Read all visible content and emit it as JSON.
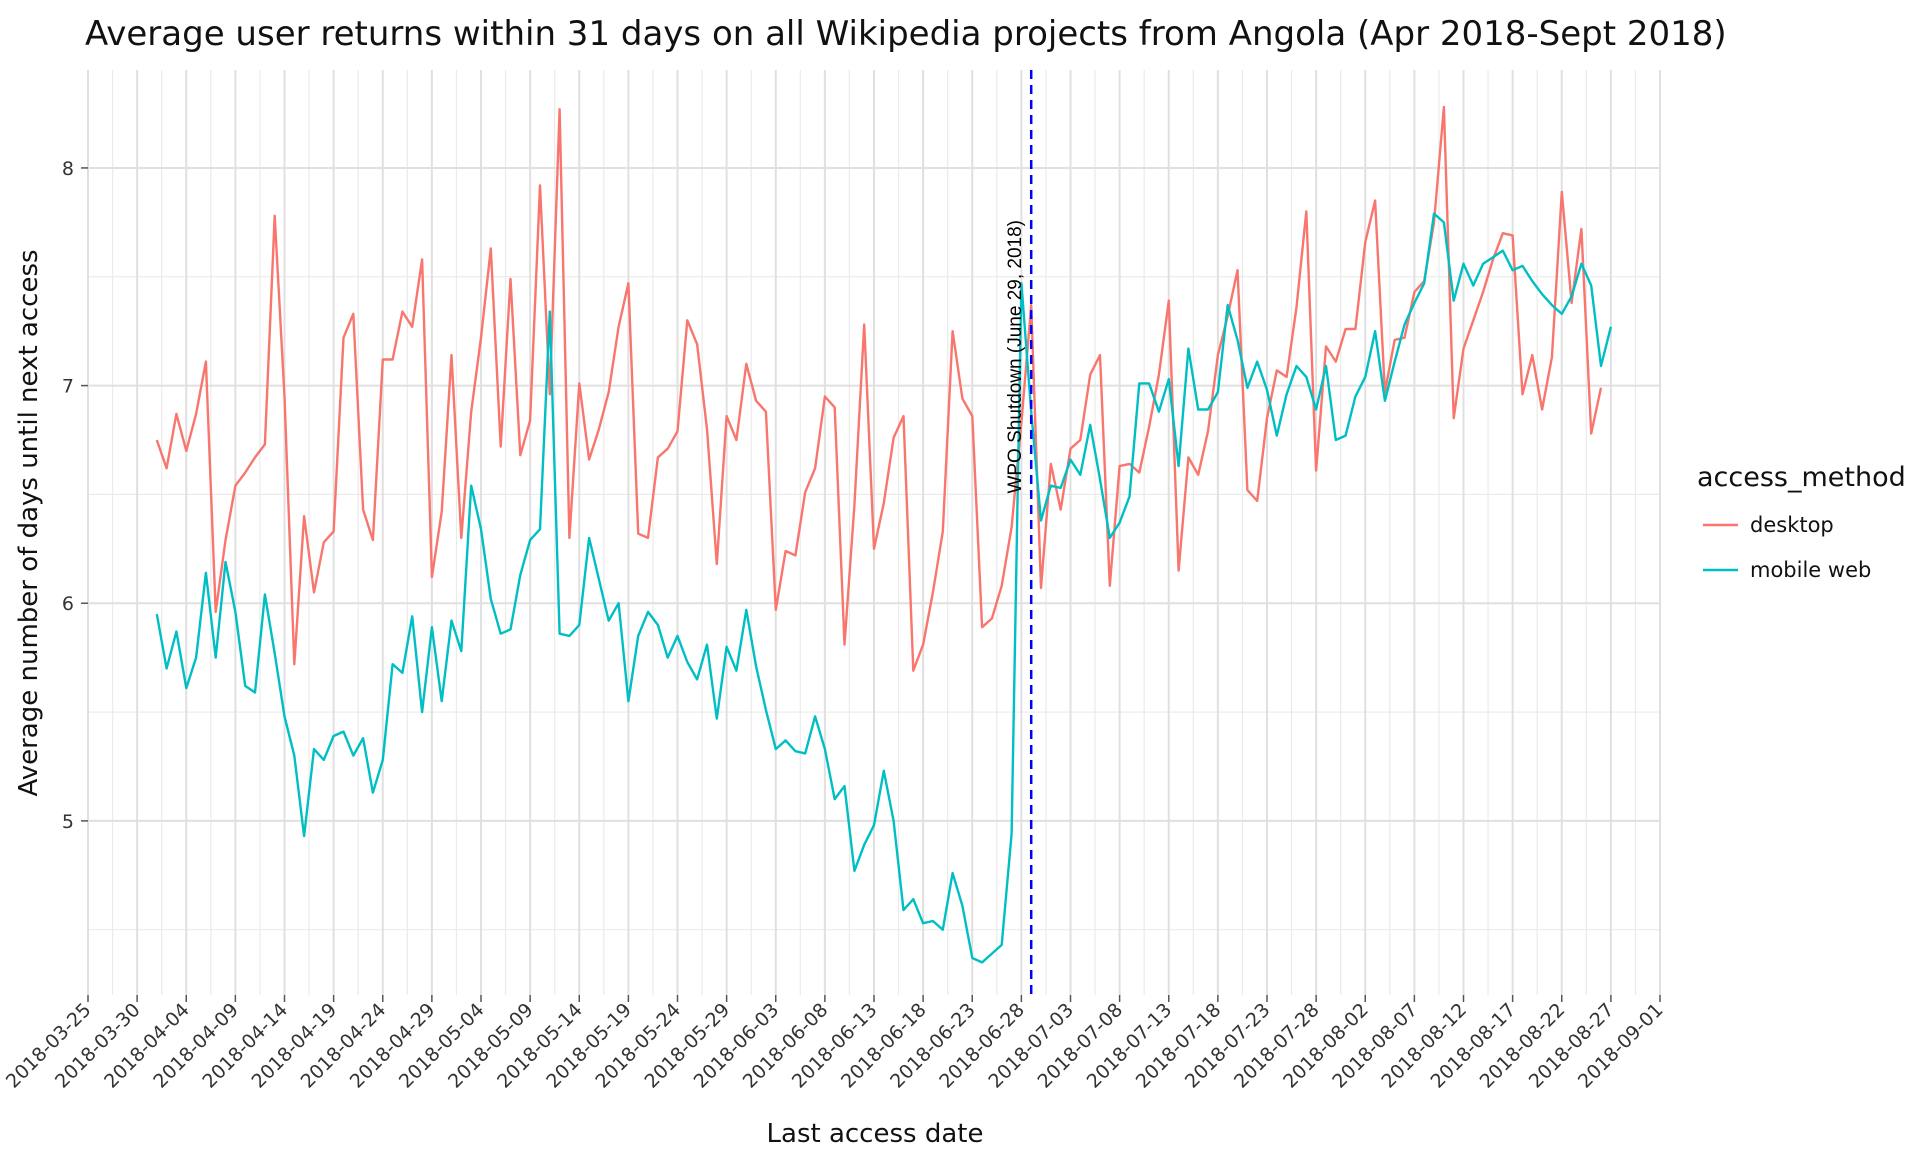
{
  "chart_data": {
    "type": "line",
    "title": "Average user returns within 31 days on all Wikipedia projects from Angola (Apr 2018-Sept 2018)",
    "xlabel": "Last access date",
    "ylabel": "Average number of days until next access",
    "xlim": [
      "2018-03-25",
      "2018-09-01"
    ],
    "ylim": [
      4.2,
      8.45
    ],
    "grid": true,
    "legend_title": "access_method",
    "legend_position": "right",
    "x_ticks": [
      "2018-03-25",
      "2018-03-30",
      "2018-04-04",
      "2018-04-09",
      "2018-04-14",
      "2018-04-19",
      "2018-04-24",
      "2018-04-29",
      "2018-05-04",
      "2018-05-09",
      "2018-05-14",
      "2018-05-19",
      "2018-05-24",
      "2018-05-29",
      "2018-06-03",
      "2018-06-08",
      "2018-06-13",
      "2018-06-18",
      "2018-06-23",
      "2018-06-28",
      "2018-07-03",
      "2018-07-08",
      "2018-07-13",
      "2018-07-18",
      "2018-07-23",
      "2018-07-28",
      "2018-08-02",
      "2018-08-07",
      "2018-08-12",
      "2018-08-17",
      "2018-08-22",
      "2018-08-27",
      "2018-09-01"
    ],
    "y_ticks": [
      5,
      6,
      7,
      8
    ],
    "annotation": {
      "date": "2018-06-29",
      "label": "WPO Shutdown (June 29, 2018)",
      "color": "#0000ff"
    },
    "x_start": "2018-04-01",
    "series": [
      {
        "name": "desktop",
        "color": "#f8766d",
        "values": [
          6.75,
          6.62,
          6.87,
          6.7,
          6.87,
          7.11,
          5.96,
          6.29,
          6.54,
          6.6,
          6.67,
          6.73,
          7.78,
          6.95,
          5.72,
          6.4,
          6.05,
          6.28,
          6.33,
          7.22,
          7.33,
          6.43,
          6.29,
          7.12,
          7.12,
          7.34,
          7.27,
          7.58,
          6.12,
          6.42,
          7.14,
          6.3,
          6.88,
          7.22,
          7.63,
          6.72,
          7.49,
          6.68,
          6.84,
          7.92,
          6.96,
          8.27,
          6.3,
          7.01,
          6.66,
          6.8,
          6.97,
          7.27,
          7.47,
          6.32,
          6.3,
          6.67,
          6.71,
          6.79,
          7.3,
          7.19,
          6.8,
          6.18,
          6.86,
          6.75,
          7.1,
          6.93,
          6.88,
          5.97,
          6.24,
          6.22,
          6.51,
          6.62,
          6.95,
          6.9,
          5.81,
          6.45,
          7.28,
          6.25,
          6.46,
          6.76,
          6.86,
          5.69,
          5.81,
          6.05,
          6.33,
          7.25,
          6.94,
          6.86,
          5.89,
          5.93,
          6.08,
          6.35,
          6.83,
          7.37,
          6.07,
          6.64,
          6.43,
          6.71,
          6.75,
          7.05,
          7.14,
          6.08,
          6.63,
          6.64,
          6.6,
          6.81,
          7.05,
          7.39,
          6.15,
          6.67,
          6.59,
          6.79,
          7.14,
          7.32,
          7.53,
          6.52,
          6.47,
          6.85,
          7.07,
          7.04,
          7.36,
          7.8,
          6.61,
          7.18,
          7.11,
          7.26,
          7.26,
          7.66,
          7.85,
          6.97,
          7.21,
          7.22,
          7.43,
          7.48,
          7.75,
          8.28,
          6.85,
          7.17,
          7.3,
          7.43,
          7.58,
          7.7,
          7.69,
          6.96,
          7.14,
          6.89,
          7.13,
          7.89,
          7.38,
          7.72,
          6.78,
          6.99
        ]
      },
      {
        "name": "mobile web",
        "color": "#00bfc4",
        "values": [
          5.95,
          5.7,
          5.87,
          5.61,
          5.75,
          6.14,
          5.75,
          6.19,
          5.96,
          5.62,
          5.59,
          6.04,
          5.77,
          5.48,
          5.3,
          4.93,
          5.33,
          5.28,
          5.39,
          5.41,
          5.3,
          5.38,
          5.13,
          5.28,
          5.72,
          5.68,
          5.94,
          5.5,
          5.89,
          5.55,
          5.92,
          5.78,
          6.54,
          6.34,
          6.02,
          5.86,
          5.88,
          6.13,
          6.29,
          6.34,
          7.34,
          5.86,
          5.85,
          5.9,
          6.3,
          6.11,
          5.92,
          6.0,
          5.55,
          5.85,
          5.96,
          5.9,
          5.75,
          5.85,
          5.73,
          5.65,
          5.81,
          5.47,
          5.8,
          5.69,
          5.97,
          5.71,
          5.51,
          5.33,
          5.37,
          5.32,
          5.31,
          5.48,
          5.33,
          5.1,
          5.16,
          4.77,
          4.89,
          4.98,
          5.23,
          5.0,
          4.59,
          4.64,
          4.53,
          4.54,
          4.5,
          4.76,
          4.61,
          4.37,
          4.35,
          4.39,
          4.43,
          4.94,
          7.47,
          6.88,
          6.38,
          6.54,
          6.53,
          6.66,
          6.59,
          6.82,
          6.57,
          6.3,
          6.37,
          6.49,
          7.01,
          7.01,
          6.88,
          7.03,
          6.63,
          7.17,
          6.89,
          6.89,
          6.97,
          7.37,
          7.21,
          6.99,
          7.11,
          6.98,
          6.77,
          6.96,
          7.09,
          7.04,
          6.89,
          7.09,
          6.75,
          6.77,
          6.95,
          7.04,
          7.25,
          6.93,
          7.11,
          7.28,
          7.38,
          7.47,
          7.79,
          7.75,
          7.39,
          7.56,
          7.46,
          7.56,
          7.59,
          7.62,
          7.53,
          7.55,
          7.48,
          7.42,
          7.37,
          7.33,
          7.41,
          7.56,
          7.46,
          7.09,
          7.27
        ]
      }
    ]
  }
}
